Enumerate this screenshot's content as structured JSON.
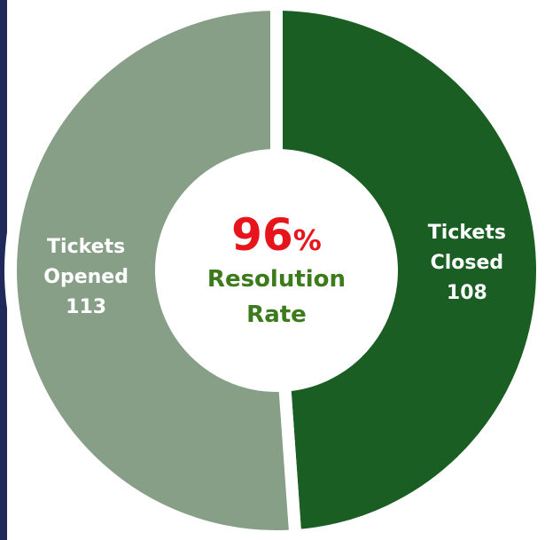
{
  "chart_data": {
    "type": "donut",
    "categories": [
      "Tickets Closed",
      "Tickets Opened"
    ],
    "values": [
      108,
      113
    ],
    "colors": [
      "#1a5e23",
      "#879e87"
    ],
    "center": {
      "value": 96,
      "suffix": "%",
      "label": "Resolution Rate"
    }
  }
}
